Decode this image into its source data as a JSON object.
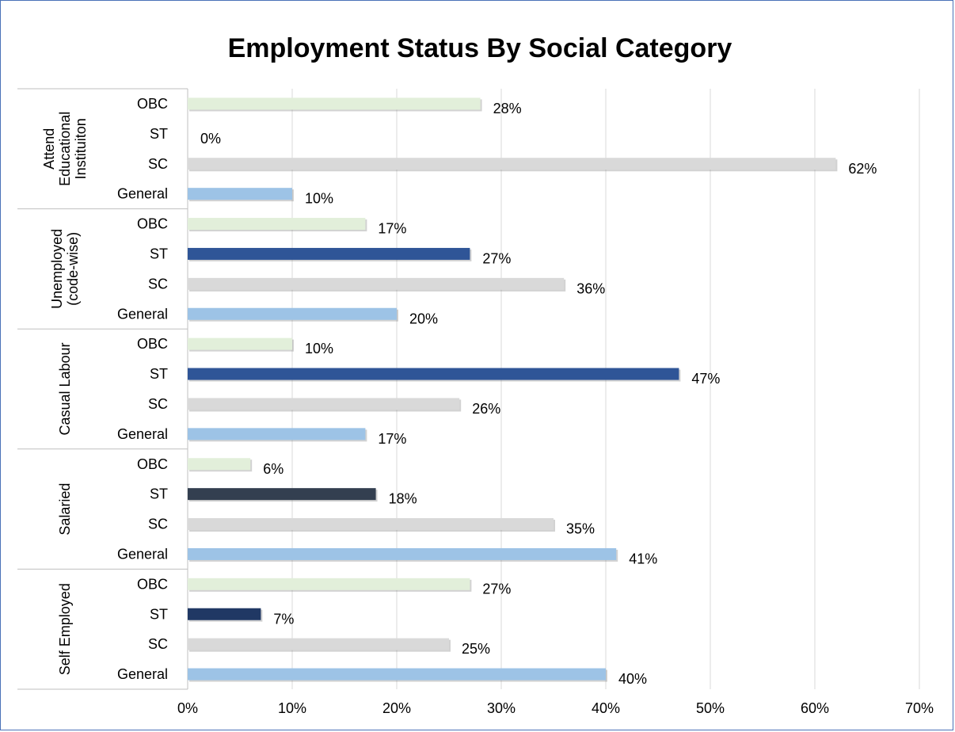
{
  "chart_data": {
    "type": "bar",
    "orientation": "horizontal",
    "title": "Employment Status By Social Category",
    "xlim": [
      0,
      70
    ],
    "x_ticks": [
      "0%",
      "10%",
      "20%",
      "30%",
      "40%",
      "50%",
      "60%",
      "70%"
    ],
    "x_grid": true,
    "legend": "none",
    "value_suffix": "%",
    "colors": {
      "OBC": "#e2efda",
      "ST": "#2f5597",
      "SC": "#d9d9d9",
      "General": "#9dc3e6"
    },
    "groups": [
      {
        "label_lines": [
          "Attend",
          "Educational",
          "Instituiton"
        ],
        "bars": [
          {
            "category": "OBC",
            "value": 28
          },
          {
            "category": "ST",
            "value": 0
          },
          {
            "category": "SC",
            "value": 62
          },
          {
            "category": "General",
            "value": 10
          }
        ]
      },
      {
        "label_lines": [
          "Unemployed",
          "(code-wise)"
        ],
        "bars": [
          {
            "category": "OBC",
            "value": 17
          },
          {
            "category": "ST",
            "value": 27
          },
          {
            "category": "SC",
            "value": 36
          },
          {
            "category": "General",
            "value": 20
          }
        ]
      },
      {
        "label_lines": [
          "Casual Labour"
        ],
        "bars": [
          {
            "category": "OBC",
            "value": 10
          },
          {
            "category": "ST",
            "value": 47
          },
          {
            "category": "SC",
            "value": 26
          },
          {
            "category": "General",
            "value": 17
          }
        ]
      },
      {
        "label_lines": [
          "Salaried"
        ],
        "bars": [
          {
            "category": "OBC",
            "value": 6
          },
          {
            "category": "ST",
            "value": 18,
            "color": "#333f50"
          },
          {
            "category": "SC",
            "value": 35
          },
          {
            "category": "General",
            "value": 41
          }
        ]
      },
      {
        "label_lines": [
          "Self Employed"
        ],
        "bars": [
          {
            "category": "OBC",
            "value": 27
          },
          {
            "category": "ST",
            "value": 7,
            "color": "#203864"
          },
          {
            "category": "SC",
            "value": 25
          },
          {
            "category": "General",
            "value": 40
          }
        ]
      }
    ]
  }
}
